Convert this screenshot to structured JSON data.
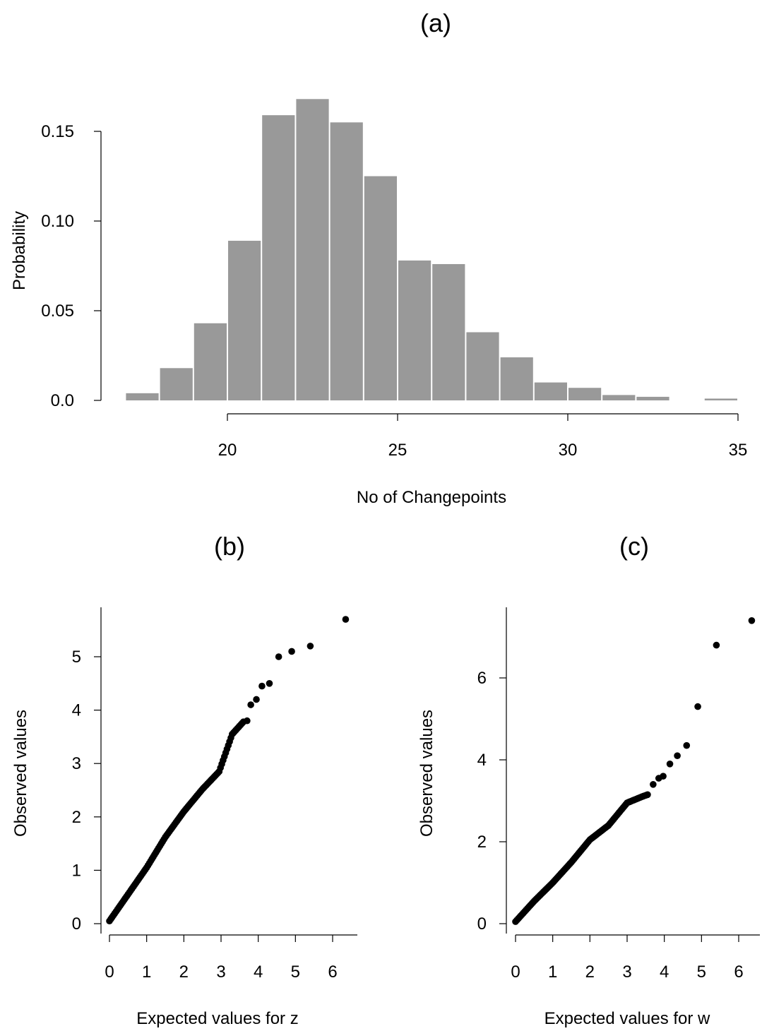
{
  "chart_data": [
    {
      "panel": "(a)",
      "type": "bar",
      "title": "(a)",
      "xlabel": "No of Changepoints",
      "ylabel": "Probability",
      "bin_edges": [
        17,
        18,
        19,
        20,
        21,
        22,
        23,
        24,
        25,
        26,
        27,
        28,
        29,
        30,
        31,
        32,
        33,
        34,
        35
      ],
      "values": [
        0.004,
        0.018,
        0.043,
        0.089,
        0.159,
        0.168,
        0.155,
        0.125,
        0.078,
        0.076,
        0.038,
        0.024,
        0.01,
        0.007,
        0.003,
        0.002,
        0.0,
        0.001
      ],
      "xticks": [
        20,
        25,
        30,
        35
      ],
      "yticks": [
        0.0,
        0.05,
        0.1,
        0.15
      ],
      "ytick_labels": [
        "0.0",
        "0.05",
        "0.10",
        "0.15"
      ],
      "xlim": [
        16.5,
        35.2
      ],
      "ylim": [
        0,
        0.17
      ],
      "bar_color": "#999999"
    },
    {
      "panel": "(b)",
      "type": "scatter",
      "title": "(b)",
      "xlabel": "Expected values for z",
      "ylabel": "Observed values",
      "xticks": [
        0,
        1,
        2,
        3,
        4,
        5,
        6
      ],
      "yticks": [
        0,
        1,
        2,
        3,
        4,
        5
      ],
      "xlim": [
        0,
        6.6
      ],
      "ylim": [
        0,
        5.9
      ],
      "curve": [
        [
          0.0,
          0.05
        ],
        [
          0.5,
          0.55
        ],
        [
          1.0,
          1.05
        ],
        [
          1.5,
          1.62
        ],
        [
          2.0,
          2.1
        ],
        [
          2.5,
          2.52
        ],
        [
          2.95,
          2.85
        ],
        [
          3.3,
          3.55
        ],
        [
          3.6,
          3.78
        ]
      ],
      "tail_points": [
        [
          3.7,
          3.8
        ],
        [
          3.8,
          4.1
        ],
        [
          3.95,
          4.2
        ],
        [
          4.1,
          4.45
        ],
        [
          4.3,
          4.5
        ],
        [
          4.55,
          5.0
        ],
        [
          4.9,
          5.1
        ],
        [
          5.4,
          5.2
        ],
        [
          6.35,
          5.7
        ]
      ],
      "marker_color": "#000000"
    },
    {
      "panel": "(c)",
      "type": "scatter",
      "title": "(c)",
      "xlabel": "Expected values for w",
      "ylabel": "Observed values",
      "xticks": [
        0,
        1,
        2,
        3,
        4,
        5,
        6
      ],
      "yticks": [
        0,
        2,
        4,
        6
      ],
      "xlim": [
        0,
        6.6
      ],
      "ylim": [
        0,
        7.6
      ],
      "curve": [
        [
          0.0,
          0.05
        ],
        [
          0.5,
          0.55
        ],
        [
          1.0,
          1.0
        ],
        [
          1.5,
          1.5
        ],
        [
          2.0,
          2.05
        ],
        [
          2.5,
          2.4
        ],
        [
          3.0,
          2.95
        ],
        [
          3.4,
          3.1
        ],
        [
          3.55,
          3.15
        ]
      ],
      "tail_points": [
        [
          3.7,
          3.4
        ],
        [
          3.85,
          3.55
        ],
        [
          3.97,
          3.6
        ],
        [
          4.15,
          3.9
        ],
        [
          4.35,
          4.1
        ],
        [
          4.6,
          4.35
        ],
        [
          4.9,
          5.3
        ],
        [
          5.4,
          6.8
        ],
        [
          6.35,
          7.4
        ]
      ],
      "marker_color": "#000000"
    }
  ]
}
